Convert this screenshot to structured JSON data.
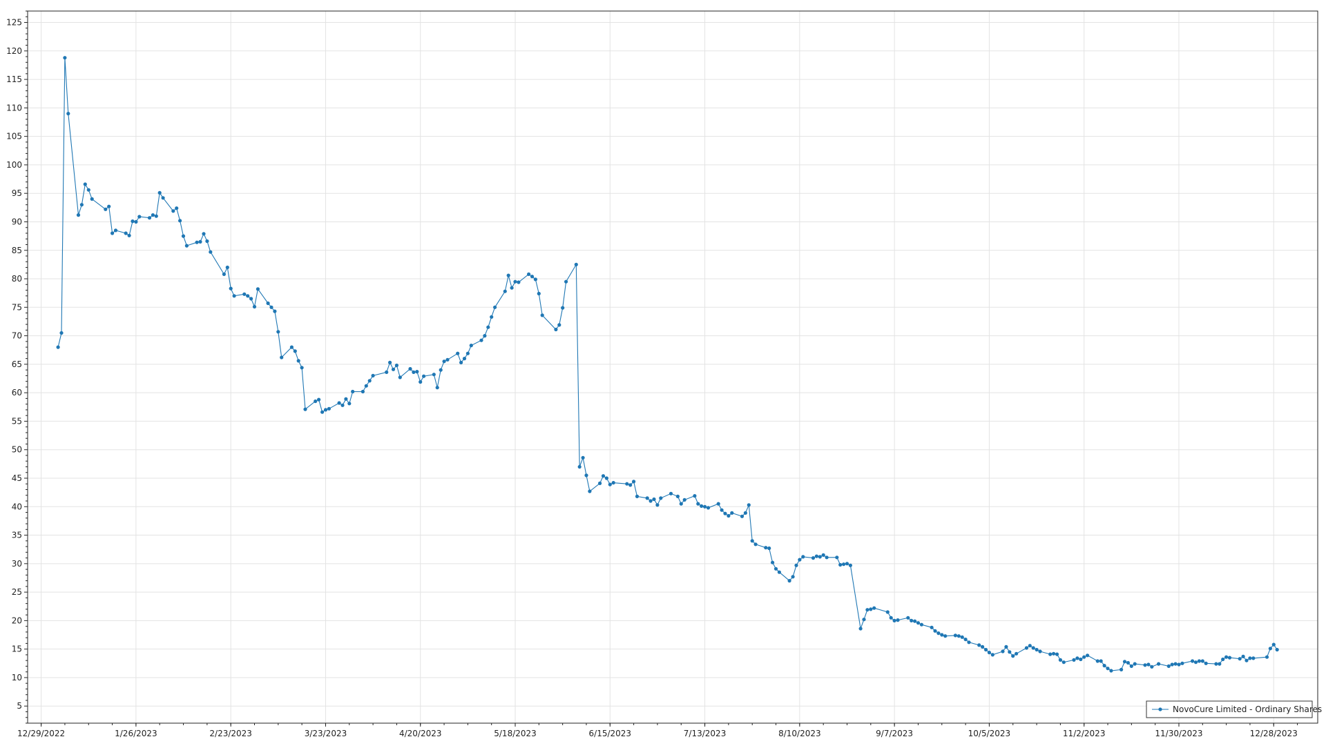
{
  "chart_data": {
    "type": "line",
    "title": "",
    "xlabel": "",
    "ylabel": "",
    "grid": true,
    "legend_position": "bottom-right",
    "ylim": [
      2,
      127
    ],
    "xlim": [
      "2022-12-25",
      "2024-01-10"
    ],
    "y_ticks": [
      5,
      10,
      15,
      20,
      25,
      30,
      35,
      40,
      45,
      50,
      55,
      60,
      65,
      70,
      75,
      80,
      85,
      90,
      95,
      100,
      105,
      110,
      115,
      120,
      125
    ],
    "x_ticks": [
      {
        "date": "2022-12-29",
        "label": "12/29/2022"
      },
      {
        "date": "2023-01-26",
        "label": "1/26/2023"
      },
      {
        "date": "2023-02-23",
        "label": "2/23/2023"
      },
      {
        "date": "2023-03-23",
        "label": "3/23/2023"
      },
      {
        "date": "2023-04-20",
        "label": "4/20/2023"
      },
      {
        "date": "2023-05-18",
        "label": "5/18/2023"
      },
      {
        "date": "2023-06-15",
        "label": "6/15/2023"
      },
      {
        "date": "2023-07-13",
        "label": "7/13/2023"
      },
      {
        "date": "2023-08-10",
        "label": "8/10/2023"
      },
      {
        "date": "2023-09-07",
        "label": "9/7/2023"
      },
      {
        "date": "2023-10-05",
        "label": "10/5/2023"
      },
      {
        "date": "2023-11-02",
        "label": "11/2/2023"
      },
      {
        "date": "2023-11-30",
        "label": "11/30/2023"
      },
      {
        "date": "2023-12-28",
        "label": "12/28/2023"
      }
    ],
    "colors": {
      "series": "#1f77b4"
    },
    "series": [
      {
        "name": "NovoCure Limited - Ordinary Shares",
        "points": [
          [
            "2023-01-03",
            68.0
          ],
          [
            "2023-01-04",
            70.5
          ],
          [
            "2023-01-05",
            118.8
          ],
          [
            "2023-01-06",
            109.0
          ],
          [
            "2023-01-09",
            91.2
          ],
          [
            "2023-01-10",
            93.0
          ],
          [
            "2023-01-11",
            96.6
          ],
          [
            "2023-01-12",
            95.6
          ],
          [
            "2023-01-13",
            94.0
          ],
          [
            "2023-01-17",
            92.2
          ],
          [
            "2023-01-18",
            92.7
          ],
          [
            "2023-01-19",
            88.0
          ],
          [
            "2023-01-20",
            88.5
          ],
          [
            "2023-01-23",
            88.0
          ],
          [
            "2023-01-24",
            87.6
          ],
          [
            "2023-01-25",
            90.1
          ],
          [
            "2023-01-26",
            90.0
          ],
          [
            "2023-01-27",
            90.9
          ],
          [
            "2023-01-30",
            90.7
          ],
          [
            "2023-01-31",
            91.2
          ],
          [
            "2023-02-01",
            91.0
          ],
          [
            "2023-02-02",
            95.1
          ],
          [
            "2023-02-03",
            94.2
          ],
          [
            "2023-02-06",
            91.9
          ],
          [
            "2023-02-07",
            92.4
          ],
          [
            "2023-02-08",
            90.2
          ],
          [
            "2023-02-09",
            87.5
          ],
          [
            "2023-02-10",
            85.8
          ],
          [
            "2023-02-13",
            86.4
          ],
          [
            "2023-02-14",
            86.5
          ],
          [
            "2023-02-15",
            87.9
          ],
          [
            "2023-02-16",
            86.6
          ],
          [
            "2023-02-17",
            84.7
          ],
          [
            "2023-02-21",
            80.8
          ],
          [
            "2023-02-22",
            82.0
          ],
          [
            "2023-02-23",
            78.3
          ],
          [
            "2023-02-24",
            77.0
          ],
          [
            "2023-02-27",
            77.3
          ],
          [
            "2023-02-28",
            77.0
          ],
          [
            "2023-03-01",
            76.5
          ],
          [
            "2023-03-02",
            75.1
          ],
          [
            "2023-03-03",
            78.2
          ],
          [
            "2023-03-06",
            75.7
          ],
          [
            "2023-03-07",
            75.0
          ],
          [
            "2023-03-08",
            74.3
          ],
          [
            "2023-03-09",
            70.7
          ],
          [
            "2023-03-10",
            66.2
          ],
          [
            "2023-03-13",
            68.0
          ],
          [
            "2023-03-14",
            67.3
          ],
          [
            "2023-03-15",
            65.6
          ],
          [
            "2023-03-16",
            64.4
          ],
          [
            "2023-03-17",
            57.1
          ],
          [
            "2023-03-20",
            58.5
          ],
          [
            "2023-03-21",
            58.8
          ],
          [
            "2023-03-22",
            56.6
          ],
          [
            "2023-03-23",
            57.0
          ],
          [
            "2023-03-24",
            57.2
          ],
          [
            "2023-03-27",
            58.2
          ],
          [
            "2023-03-28",
            57.8
          ],
          [
            "2023-03-29",
            58.9
          ],
          [
            "2023-03-30",
            58.1
          ],
          [
            "2023-03-31",
            60.2
          ],
          [
            "2023-04-03",
            60.2
          ],
          [
            "2023-04-04",
            61.2
          ],
          [
            "2023-04-05",
            62.1
          ],
          [
            "2023-04-06",
            63.0
          ],
          [
            "2023-04-10",
            63.6
          ],
          [
            "2023-04-11",
            65.3
          ],
          [
            "2023-04-12",
            64.1
          ],
          [
            "2023-04-13",
            64.8
          ],
          [
            "2023-04-14",
            62.7
          ],
          [
            "2023-04-17",
            64.2
          ],
          [
            "2023-04-18",
            63.6
          ],
          [
            "2023-04-19",
            63.7
          ],
          [
            "2023-04-20",
            61.9
          ],
          [
            "2023-04-21",
            62.9
          ],
          [
            "2023-04-24",
            63.2
          ],
          [
            "2023-04-25",
            60.9
          ],
          [
            "2023-04-26",
            64.0
          ],
          [
            "2023-04-27",
            65.5
          ],
          [
            "2023-04-28",
            65.8
          ],
          [
            "2023-05-01",
            66.9
          ],
          [
            "2023-05-02",
            65.3
          ],
          [
            "2023-05-03",
            66.0
          ],
          [
            "2023-05-04",
            66.9
          ],
          [
            "2023-05-05",
            68.3
          ],
          [
            "2023-05-08",
            69.2
          ],
          [
            "2023-05-09",
            70.0
          ],
          [
            "2023-05-10",
            71.5
          ],
          [
            "2023-05-11",
            73.3
          ],
          [
            "2023-05-12",
            75.0
          ],
          [
            "2023-05-15",
            77.8
          ],
          [
            "2023-05-16",
            80.6
          ],
          [
            "2023-05-17",
            78.4
          ],
          [
            "2023-05-18",
            79.5
          ],
          [
            "2023-05-19",
            79.4
          ],
          [
            "2023-05-22",
            80.8
          ],
          [
            "2023-05-23",
            80.4
          ],
          [
            "2023-05-24",
            79.9
          ],
          [
            "2023-05-25",
            77.4
          ],
          [
            "2023-05-26",
            73.6
          ],
          [
            "2023-05-30",
            71.1
          ],
          [
            "2023-05-31",
            71.9
          ],
          [
            "2023-06-01",
            74.9
          ],
          [
            "2023-06-02",
            79.5
          ],
          [
            "2023-06-05",
            82.5
          ],
          [
            "2023-06-06",
            47.0
          ],
          [
            "2023-06-07",
            48.6
          ],
          [
            "2023-06-08",
            45.5
          ],
          [
            "2023-06-09",
            42.7
          ],
          [
            "2023-06-12",
            44.1
          ],
          [
            "2023-06-13",
            45.4
          ],
          [
            "2023-06-14",
            45.0
          ],
          [
            "2023-06-15",
            43.9
          ],
          [
            "2023-06-16",
            44.2
          ],
          [
            "2023-06-20",
            44.0
          ],
          [
            "2023-06-21",
            43.8
          ],
          [
            "2023-06-22",
            44.4
          ],
          [
            "2023-06-23",
            41.8
          ],
          [
            "2023-06-26",
            41.5
          ],
          [
            "2023-06-27",
            41.0
          ],
          [
            "2023-06-28",
            41.3
          ],
          [
            "2023-06-29",
            40.3
          ],
          [
            "2023-06-30",
            41.5
          ],
          [
            "2023-07-03",
            42.3
          ],
          [
            "2023-07-05",
            41.8
          ],
          [
            "2023-07-06",
            40.5
          ],
          [
            "2023-07-07",
            41.2
          ],
          [
            "2023-07-10",
            41.9
          ],
          [
            "2023-07-11",
            40.5
          ],
          [
            "2023-07-12",
            40.1
          ],
          [
            "2023-07-13",
            40.0
          ],
          [
            "2023-07-14",
            39.8
          ],
          [
            "2023-07-17",
            40.5
          ],
          [
            "2023-07-18",
            39.4
          ],
          [
            "2023-07-19",
            38.8
          ],
          [
            "2023-07-20",
            38.4
          ],
          [
            "2023-07-21",
            38.9
          ],
          [
            "2023-07-24",
            38.3
          ],
          [
            "2023-07-25",
            38.9
          ],
          [
            "2023-07-26",
            40.3
          ],
          [
            "2023-07-27",
            34.0
          ],
          [
            "2023-07-28",
            33.4
          ],
          [
            "2023-07-31",
            32.8
          ],
          [
            "2023-08-01",
            32.7
          ],
          [
            "2023-08-02",
            30.2
          ],
          [
            "2023-08-03",
            29.1
          ],
          [
            "2023-08-04",
            28.5
          ],
          [
            "2023-08-07",
            27.0
          ],
          [
            "2023-08-08",
            27.7
          ],
          [
            "2023-08-09",
            29.7
          ],
          [
            "2023-08-10",
            30.7
          ],
          [
            "2023-08-11",
            31.2
          ],
          [
            "2023-08-14",
            31.0
          ],
          [
            "2023-08-15",
            31.3
          ],
          [
            "2023-08-16",
            31.2
          ],
          [
            "2023-08-17",
            31.5
          ],
          [
            "2023-08-18",
            31.1
          ],
          [
            "2023-08-21",
            31.1
          ],
          [
            "2023-08-22",
            29.8
          ],
          [
            "2023-08-23",
            29.9
          ],
          [
            "2023-08-24",
            30.0
          ],
          [
            "2023-08-25",
            29.7
          ],
          [
            "2023-08-28",
            18.6
          ],
          [
            "2023-08-29",
            20.2
          ],
          [
            "2023-08-30",
            21.9
          ],
          [
            "2023-08-31",
            22.0
          ],
          [
            "2023-09-01",
            22.2
          ],
          [
            "2023-09-05",
            21.5
          ],
          [
            "2023-09-06",
            20.5
          ],
          [
            "2023-09-07",
            20.0
          ],
          [
            "2023-09-08",
            20.1
          ],
          [
            "2023-09-11",
            20.5
          ],
          [
            "2023-09-12",
            20.0
          ],
          [
            "2023-09-13",
            19.9
          ],
          [
            "2023-09-14",
            19.6
          ],
          [
            "2023-09-15",
            19.3
          ],
          [
            "2023-09-18",
            18.8
          ],
          [
            "2023-09-19",
            18.2
          ],
          [
            "2023-09-20",
            17.8
          ],
          [
            "2023-09-21",
            17.5
          ],
          [
            "2023-09-22",
            17.3
          ],
          [
            "2023-09-25",
            17.4
          ],
          [
            "2023-09-26",
            17.3
          ],
          [
            "2023-09-27",
            17.1
          ],
          [
            "2023-09-28",
            16.7
          ],
          [
            "2023-09-29",
            16.2
          ],
          [
            "2023-10-02",
            15.7
          ],
          [
            "2023-10-03",
            15.4
          ],
          [
            "2023-10-04",
            14.9
          ],
          [
            "2023-10-05",
            14.4
          ],
          [
            "2023-10-06",
            14.0
          ],
          [
            "2023-10-09",
            14.6
          ],
          [
            "2023-10-10",
            15.4
          ],
          [
            "2023-10-11",
            14.5
          ],
          [
            "2023-10-12",
            13.8
          ],
          [
            "2023-10-13",
            14.2
          ],
          [
            "2023-10-16",
            15.2
          ],
          [
            "2023-10-17",
            15.6
          ],
          [
            "2023-10-18",
            15.2
          ],
          [
            "2023-10-19",
            14.9
          ],
          [
            "2023-10-20",
            14.6
          ],
          [
            "2023-10-23",
            14.1
          ],
          [
            "2023-10-24",
            14.2
          ],
          [
            "2023-10-25",
            14.1
          ],
          [
            "2023-10-26",
            13.1
          ],
          [
            "2023-10-27",
            12.7
          ],
          [
            "2023-10-30",
            13.1
          ],
          [
            "2023-10-31",
            13.4
          ],
          [
            "2023-11-01",
            13.2
          ],
          [
            "2023-11-02",
            13.6
          ],
          [
            "2023-11-03",
            13.9
          ],
          [
            "2023-11-06",
            12.9
          ],
          [
            "2023-11-07",
            12.9
          ],
          [
            "2023-11-08",
            12.1
          ],
          [
            "2023-11-09",
            11.6
          ],
          [
            "2023-11-10",
            11.2
          ],
          [
            "2023-11-13",
            11.4
          ],
          [
            "2023-11-14",
            12.8
          ],
          [
            "2023-11-15",
            12.6
          ],
          [
            "2023-11-16",
            12.0
          ],
          [
            "2023-11-17",
            12.4
          ],
          [
            "2023-11-20",
            12.2
          ],
          [
            "2023-11-21",
            12.3
          ],
          [
            "2023-11-22",
            11.9
          ],
          [
            "2023-11-24",
            12.4
          ],
          [
            "2023-11-27",
            12.0
          ],
          [
            "2023-11-28",
            12.3
          ],
          [
            "2023-11-29",
            12.4
          ],
          [
            "2023-11-30",
            12.3
          ],
          [
            "2023-12-01",
            12.5
          ],
          [
            "2023-12-04",
            12.9
          ],
          [
            "2023-12-05",
            12.7
          ],
          [
            "2023-12-06",
            12.9
          ],
          [
            "2023-12-07",
            12.9
          ],
          [
            "2023-12-08",
            12.5
          ],
          [
            "2023-12-11",
            12.4
          ],
          [
            "2023-12-12",
            12.4
          ],
          [
            "2023-12-13",
            13.2
          ],
          [
            "2023-12-14",
            13.6
          ],
          [
            "2023-12-15",
            13.5
          ],
          [
            "2023-12-18",
            13.3
          ],
          [
            "2023-12-19",
            13.7
          ],
          [
            "2023-12-20",
            13.0
          ],
          [
            "2023-12-21",
            13.4
          ],
          [
            "2023-12-22",
            13.4
          ],
          [
            "2023-12-26",
            13.6
          ],
          [
            "2023-12-27",
            15.1
          ],
          [
            "2023-12-28",
            15.8
          ],
          [
            "2023-12-29",
            14.9
          ]
        ]
      }
    ]
  }
}
